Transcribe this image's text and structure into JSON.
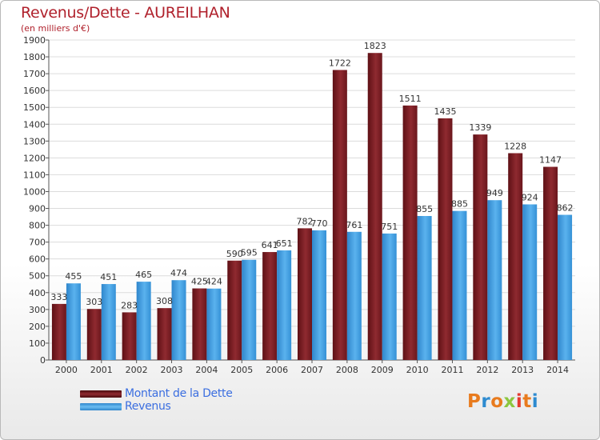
{
  "title": "Revenus/Dette - AUREILHAN",
  "subtitle": "(en milliers d'€)",
  "legend": [
    {
      "label": "Montant de la Dette",
      "color": "#7a1f24"
    },
    {
      "label": "Revenus",
      "color": "#3c9be0"
    }
  ],
  "logo": {
    "text": "Proxiti",
    "colors": [
      "#e87b1e",
      "#2e8bd0",
      "#e87b1e",
      "#8cc63f",
      "#e43a2f",
      "#e87b1e",
      "#2e8bd0"
    ]
  },
  "chart_data": {
    "type": "bar",
    "title": "Revenus/Dette - AUREILHAN",
    "subtitle": "(en milliers d'€)",
    "categories": [
      "2000",
      "2001",
      "2002",
      "2003",
      "2004",
      "2005",
      "2006",
      "2007",
      "2008",
      "2009",
      "2010",
      "2011",
      "2012",
      "2013",
      "2014"
    ],
    "series": [
      {
        "name": "Montant de la Dette",
        "color": "#7a1f24",
        "values": [
          333,
          303,
          283,
          308,
          425,
          590,
          641,
          782,
          1722,
          1823,
          1511,
          1435,
          1339,
          1228,
          1147
        ]
      },
      {
        "name": "Revenus",
        "color": "#3c9be0",
        "values": [
          455,
          451,
          465,
          474,
          424,
          595,
          651,
          770,
          761,
          751,
          855,
          885,
          949,
          924,
          862
        ]
      }
    ],
    "ylim": [
      0,
      1900
    ],
    "yticks": [
      0,
      100,
      200,
      300,
      400,
      500,
      600,
      700,
      800,
      900,
      1000,
      1100,
      1200,
      1300,
      1400,
      1500,
      1600,
      1700,
      1800,
      1900
    ],
    "grid": true,
    "legend_position": "bottom-left"
  }
}
